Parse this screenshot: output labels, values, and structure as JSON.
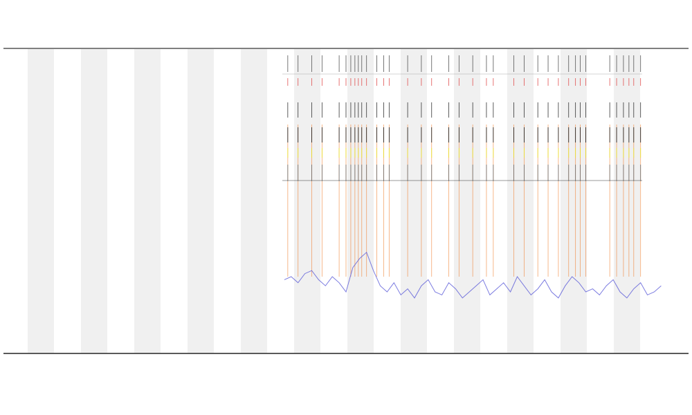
{
  "chart_data": {
    "type": "line",
    "x": [
      41,
      42,
      43,
      44,
      45,
      46,
      47,
      48,
      49,
      50,
      51,
      52,
      53,
      54,
      55,
      56,
      57,
      58,
      59,
      60,
      61,
      62,
      63,
      64,
      65,
      66,
      67,
      68,
      69,
      70,
      71,
      72,
      73,
      74,
      75,
      76,
      77,
      78,
      79,
      80,
      81,
      82,
      83,
      84,
      85,
      86,
      87,
      88,
      89,
      90,
      91,
      92,
      93,
      94,
      95,
      96
    ],
    "series": [
      {
        "color": "#5a5ad8",
        "values": [
          24,
          25,
          23,
          26,
          27,
          24,
          22,
          25,
          23,
          20,
          28,
          31,
          33,
          27,
          22,
          20,
          23,
          19,
          21,
          18,
          22,
          24,
          20,
          19,
          23,
          21,
          18,
          20,
          22,
          24,
          19,
          21,
          23,
          20,
          25,
          22,
          19,
          21,
          24,
          20,
          18,
          22,
          25,
          23,
          20,
          21,
          19,
          22,
          24,
          20,
          18,
          21,
          23,
          19,
          20,
          22
        ]
      }
    ],
    "events_x": [
      41.5,
      43,
      45,
      46.5,
      49,
      50,
      50.7,
      51.3,
      51.8,
      52.3,
      53,
      54.5,
      55.5,
      56.3,
      59,
      61,
      62.5,
      65,
      66.5,
      68.5,
      70.5,
      71.5,
      74.5,
      76,
      78,
      79.5,
      81,
      82.5,
      83.5,
      84.2,
      85,
      88.5,
      89.5,
      90.5,
      91.3,
      92,
      93
    ],
    "xlim": [
      0,
      100
    ],
    "ylim": [
      0,
      100
    ]
  }
}
